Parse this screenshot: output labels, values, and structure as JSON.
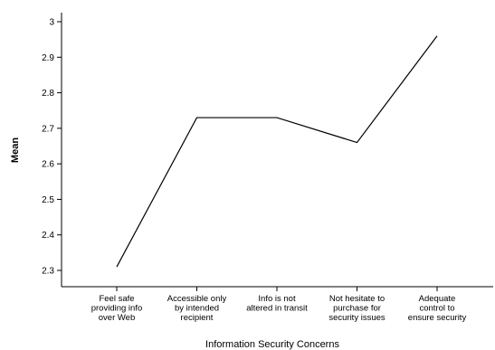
{
  "chart_data": {
    "type": "line",
    "title": "",
    "xlabel": "Information Security Concerns",
    "ylabel": "Mean",
    "categories": [
      [
        "Feel safe",
        "providing info",
        "over Web"
      ],
      [
        "Accessible only",
        "by intended",
        "recipient"
      ],
      [
        "Info is not",
        "altered in transit"
      ],
      [
        "Not hesitate to",
        "purchase for",
        "security issues"
      ],
      [
        "Adequate",
        "control to",
        "ensure security"
      ]
    ],
    "series": [
      {
        "values": [
          2.31,
          2.73,
          2.73,
          2.66,
          2.96
        ]
      }
    ],
    "ylim": [
      2.27,
      3.03
    ],
    "yticks": [
      "2.3",
      "2.4",
      "2.5",
      "2.6",
      "2.7",
      "2.8",
      "2.9",
      "3"
    ],
    "grid": false,
    "line_color": "#000000"
  }
}
